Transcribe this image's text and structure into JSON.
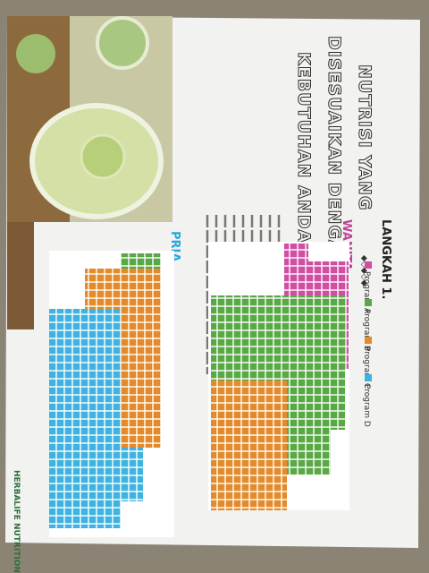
{
  "header": {
    "title_lines": [
      "NUTRISI YANG",
      "DISESUAIKAN DENGAN",
      "KEBUTUHAN ANDA"
    ]
  },
  "step": {
    "title": "LANGKAH 1."
  },
  "legend": [
    "Program A",
    "Program B",
    "Program C",
    "Program D"
  ],
  "charts": [
    {
      "label": "WANITA"
    },
    {
      "label": "PRIA"
    }
  ],
  "brand": "HERBALIFE NUTRITION"
}
